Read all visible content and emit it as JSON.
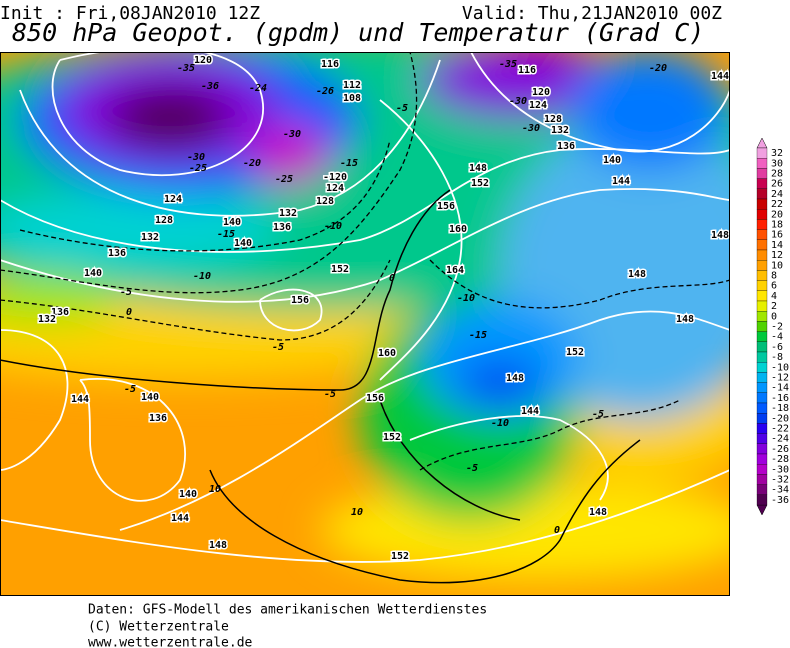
{
  "header": {
    "init": "Init : Fri,08JAN2010 12Z",
    "valid": "Valid: Thu,21JAN2010 00Z",
    "title": "850 hPa Geopot. (gpdm) und Temperatur (Grad C)"
  },
  "colorbar": {
    "labels": [
      32,
      30,
      28,
      26,
      24,
      22,
      20,
      18,
      16,
      14,
      12,
      10,
      8,
      6,
      4,
      2,
      0,
      -2,
      -4,
      -6,
      -8,
      -10,
      -12,
      -14,
      -16,
      -18,
      -20,
      -22,
      -24,
      -26,
      -28,
      -30,
      -32,
      -34,
      -36
    ],
    "colors": [
      "#f0a0e0",
      "#f060c0",
      "#e03ca0",
      "#c80050",
      "#b40028",
      "#c80000",
      "#e00000",
      "#ff2000",
      "#ff5000",
      "#ff7000",
      "#ff8c00",
      "#ffa000",
      "#ffbe00",
      "#ffd200",
      "#ffe600",
      "#e6f000",
      "#a0e600",
      "#50d200",
      "#00c83c",
      "#00be78",
      "#00c8a0",
      "#00d2d2",
      "#00b4f0",
      "#0096ff",
      "#0078ff",
      "#005aff",
      "#003cf0",
      "#2800f0",
      "#5000e6",
      "#8200dc",
      "#a000dc",
      "#b400c8",
      "#a000a0",
      "#780078",
      "#500050"
    ]
  },
  "map": {
    "contour_labels": [
      "120",
      "-35",
      "-36",
      "-24",
      "116",
      "112",
      "108",
      "-26",
      "-5",
      "-35",
      "116",
      "-20",
      "144",
      "120",
      "-30",
      "124",
      "128",
      "-30",
      "132",
      "136",
      "140",
      "-30",
      "-25",
      "-30",
      "-20",
      "-15",
      "-25",
      "-120",
      "124",
      "128",
      "132",
      "-10",
      "124",
      "128",
      "140",
      "-15",
      "136",
      "140",
      "132",
      "136",
      "140",
      "-10",
      "152",
      "-5",
      "0",
      "156",
      "136",
      "132",
      "-5",
      "148",
      "152",
      "156",
      "160",
      "0",
      "164",
      "-10",
      "160",
      "-15",
      "152",
      "148",
      "148",
      "144",
      "148",
      "148",
      "-5",
      "144",
      "-10",
      "-5",
      "156",
      "152",
      "144",
      "140",
      "-5",
      "-5",
      "136",
      "140",
      "10",
      "144",
      "10",
      "148",
      "152",
      "148",
      "0"
    ]
  },
  "footer": {
    "lines": [
      "Daten: GFS-Modell des amerikanischen Wetterdienstes",
      "(C) Wetterzentrale",
      "www.wetterzentrale.de"
    ]
  }
}
